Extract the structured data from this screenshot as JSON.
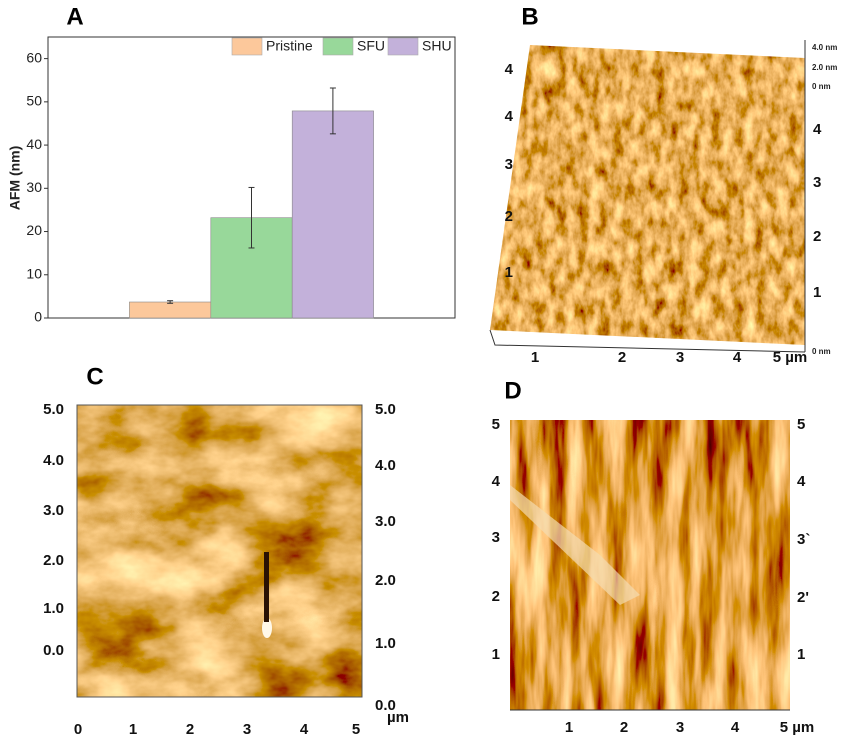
{
  "chart_data": {
    "type": "bar",
    "panel_label": "A",
    "y_label": "AFM (nm)",
    "categories": [
      null
    ],
    "series": [
      {
        "name": "Pristine",
        "color": "#fcc89b",
        "values": [
          3.7
        ],
        "errors": [
          0.3
        ]
      },
      {
        "name": "SFU",
        "color": "#98d89a",
        "values": [
          23.2
        ],
        "errors": [
          7.0
        ]
      },
      {
        "name": "SHU",
        "color": "#c3b1da",
        "values": [
          47.9
        ],
        "errors": [
          5.3
        ]
      }
    ],
    "ylim": [
      0,
      65
    ],
    "yticks": [
      0,
      10,
      20,
      30,
      40,
      50,
      60
    ],
    "grid": false
  },
  "images": [
    {
      "label": "B",
      "left_ticks": [
        "4",
        "4",
        "3",
        "2",
        "1"
      ],
      "right_ticks": [
        "4",
        "3",
        "2",
        "1"
      ],
      "bottom_ticks": [
        "1",
        "2",
        "3",
        "4",
        "5 µm"
      ],
      "scale_ticks": [
        "4.0 nm",
        "2.0 nm",
        "0 nm",
        "0 nm"
      ]
    },
    {
      "label": "C",
      "left_ticks": [
        "5.0",
        "4.0",
        "3.0",
        "2.0",
        "1.0",
        "0.0"
      ],
      "right_ticks": [
        "5.0",
        "4.0",
        "3.0",
        "2.0",
        "1.0",
        "0.0"
      ],
      "bottom_ticks": [
        "0",
        "1",
        "2",
        "3",
        "4",
        "5",
        "µm"
      ]
    },
    {
      "label": "D",
      "left_ticks": [
        "5",
        "4",
        "3",
        "2",
        "1"
      ],
      "right_ticks": [
        "5",
        "4",
        "3`",
        "2'",
        "1"
      ],
      "bottom_ticks": [
        "1",
        "2",
        "3",
        "4",
        "5 µm"
      ]
    }
  ]
}
